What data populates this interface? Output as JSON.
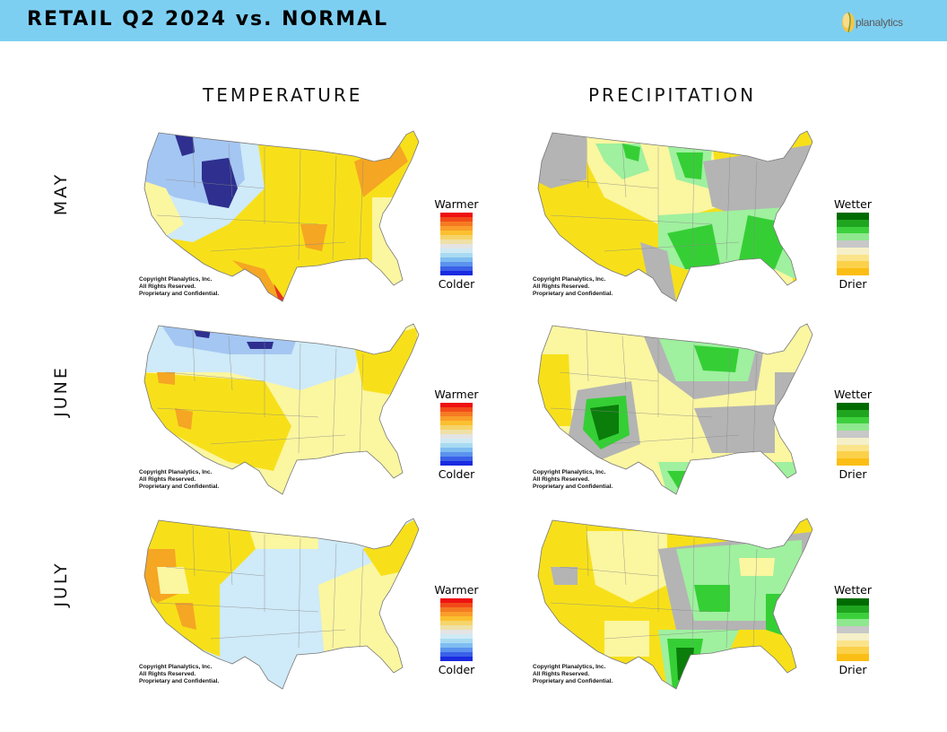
{
  "header": {
    "title": "RETAIL Q2 2024 vs. NORMAL",
    "logo_text": "planalytics",
    "background": "#7dcff2"
  },
  "columns": [
    "TEMPERATURE",
    "PRECIPITATION"
  ],
  "rows": [
    "MAY",
    "JUNE",
    "JULY"
  ],
  "copyright": [
    "Copyright Planalytics, Inc.",
    "All Rights Reserved.",
    "Proprietary and Confidential."
  ],
  "temperature_legend": {
    "top": "Warmer",
    "bottom": "Colder",
    "colors": [
      "#ee1111",
      "#f24a1a",
      "#f57a22",
      "#f99e2a",
      "#fbc02f",
      "#f5d46a",
      "#efe0a6",
      "#e4e4e4",
      "#cfeaf4",
      "#a8dbf2",
      "#7fbdf1",
      "#5b93ee",
      "#3a60e8",
      "#1a2ae0"
    ]
  },
  "precipitation_legend": {
    "top": "Wetter",
    "bottom": "Drier",
    "colors": [
      "#006b00",
      "#1fa51f",
      "#3dd03d",
      "#8ee88e",
      "#c8c8c8",
      "#f5f0c8",
      "#fbe38a",
      "#fbd14a",
      "#fbbe14"
    ]
  },
  "map_colors": {
    "temperature": {
      "very_warm": "#e8321f",
      "warm_orange": "#f5a623",
      "warm": "#f7e01a",
      "slightly_warm": "#fbf6a0",
      "near_normal": "#ffffff",
      "slightly_cool": "#cfeaf8",
      "cool": "#a4c6f2",
      "very_cool": "#2e2f8f"
    },
    "precipitation": {
      "very_wet": "#0a7d0a",
      "wet": "#35cf35",
      "slightly_wet": "#9ff09f",
      "normal": "#b4b4b4",
      "slightly_dry": "#fbf6a0",
      "dry": "#f7e01a"
    }
  },
  "maps": [
    {
      "row": "MAY",
      "variable": "temperature"
    },
    {
      "row": "MAY",
      "variable": "precipitation"
    },
    {
      "row": "JUNE",
      "variable": "temperature"
    },
    {
      "row": "JUNE",
      "variable": "precipitation"
    },
    {
      "row": "JULY",
      "variable": "temperature"
    },
    {
      "row": "JULY",
      "variable": "precipitation"
    }
  ]
}
